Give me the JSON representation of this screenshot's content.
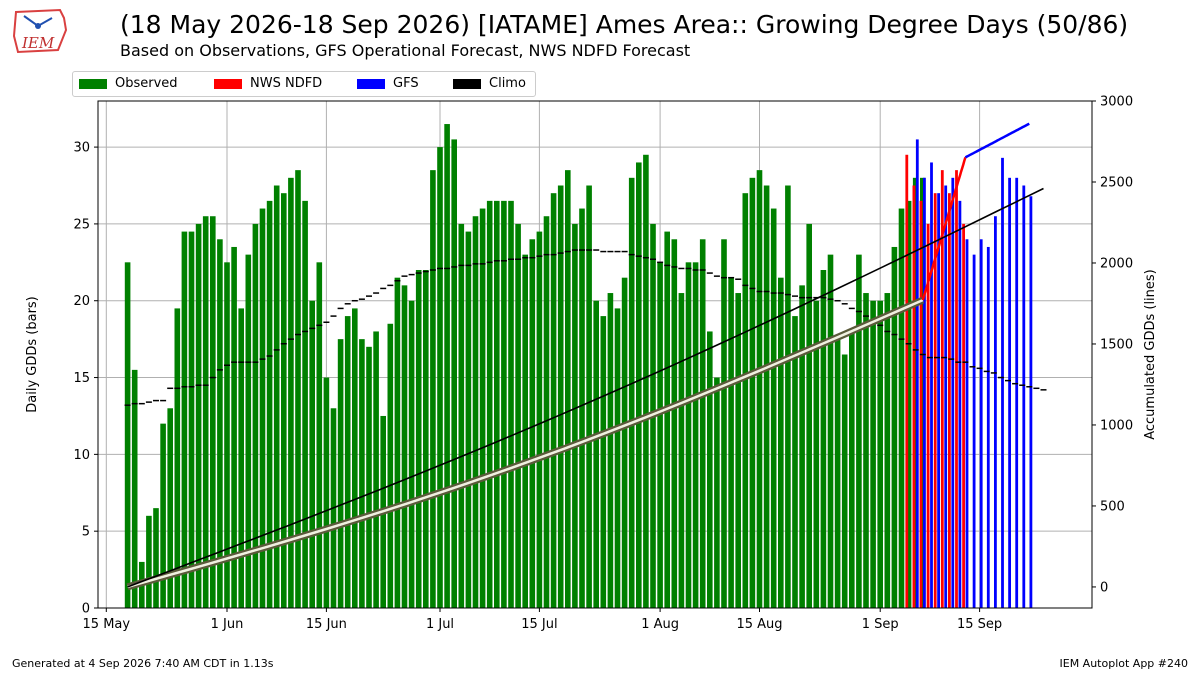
{
  "header": {
    "title": "(18 May 2026-18 Sep 2026) [IATAME] Ames Area:: Growing Degree Days (50/86)",
    "subtitle": "Based on Observations, GFS Operational Forecast, NWS NDFD Forecast"
  },
  "logo": {
    "text": "IEM"
  },
  "footer": {
    "generated": "Generated at 4 Sep 2026 7:40 AM CDT in 1.13s",
    "app": "IEM Autoplot App #240"
  },
  "colors": {
    "observed": "#008000",
    "ndfd": "#ff0000",
    "gfs": "#0000ff",
    "climo": "#000000",
    "grid": "#b0b0b0"
  },
  "legend": [
    {
      "label": "Observed",
      "color": "#008000"
    },
    {
      "label": "NWS NDFD",
      "color": "#ff0000"
    },
    {
      "label": "GFS",
      "color": "#0000ff"
    },
    {
      "label": "Climo",
      "color": "#000000"
    }
  ],
  "chart_data": {
    "type": "bar",
    "xlabel": "",
    "ylabel": "Daily GDDs (bars)",
    "y2label": "Accumulated GDDs (lines)",
    "ylim": [
      0,
      33
    ],
    "y2lim": [
      -130,
      3000
    ],
    "yticks": [
      0,
      5,
      10,
      15,
      20,
      25,
      30
    ],
    "y2ticks": [
      0,
      500,
      1000,
      1500,
      2000,
      2500,
      3000
    ],
    "xticks": [
      {
        "label": "15 May",
        "day": -3
      },
      {
        "label": "1 Jun",
        "day": 14
      },
      {
        "label": "15 Jun",
        "day": 28
      },
      {
        "label": "1 Jul",
        "day": 44
      },
      {
        "label": "15 Jul",
        "day": 58
      },
      {
        "label": "1 Aug",
        "day": 75
      },
      {
        "label": "15 Aug",
        "day": 89
      },
      {
        "label": "1 Sep",
        "day": 106
      },
      {
        "label": "15 Sep",
        "day": 120
      }
    ],
    "start_date": "18 May 2026",
    "observed": [
      22.5,
      15.5,
      3.0,
      6.0,
      6.5,
      12.0,
      13.0,
      19.5,
      24.5,
      24.5,
      25.0,
      25.5,
      25.5,
      24.0,
      22.5,
      23.5,
      19.5,
      23.0,
      25.0,
      26.0,
      26.5,
      27.5,
      27.0,
      28.0,
      28.5,
      26.5,
      20.0,
      22.5,
      15.0,
      13.0,
      17.5,
      19.0,
      19.5,
      17.5,
      17.0,
      18.0,
      12.5,
      18.5,
      21.5,
      21.0,
      20.0,
      22.0,
      22.0,
      28.5,
      30.0,
      31.5,
      30.5,
      25.0,
      24.5,
      25.5,
      26.0,
      26.5,
      26.5,
      26.5,
      26.5,
      25.0,
      23.0,
      24.0,
      24.5,
      25.5,
      27.0,
      27.5,
      28.5,
      25.0,
      26.0,
      27.5,
      20.0,
      19.0,
      20.5,
      19.5,
      21.5,
      28.0,
      29.0,
      29.5,
      25.0,
      22.5,
      24.5,
      24.0,
      20.5,
      22.5,
      22.5,
      24.0,
      18.0,
      15.0,
      24.0,
      21.5,
      20.5,
      27.0,
      28.0,
      28.5,
      27.5,
      26.0,
      21.5,
      27.5,
      19.0,
      21.0,
      25.0,
      20.0,
      22.0,
      23.0,
      17.5,
      16.5,
      18.0,
      23.0,
      20.5,
      20.0,
      20.0,
      20.5,
      23.5,
      26.0,
      26.5,
      28.0,
      28.0
    ],
    "ndfd": {
      "start_day": 110,
      "values": [
        29.5,
        27.5,
        26.5,
        25.0,
        27.0,
        28.5,
        27.0,
        28.5,
        25.0
      ]
    },
    "gfs": {
      "start_day": 111,
      "values": [
        30.5,
        28.0,
        29.0,
        27.0,
        27.5,
        28.0,
        26.5,
        24.0,
        23.0,
        24.0,
        23.5,
        25.5,
        29.3,
        28.0,
        28.0,
        27.5,
        26.8
      ]
    },
    "climo_daily": [
      13.2,
      13.3,
      13.3,
      13.4,
      13.5,
      13.5,
      14.3,
      14.3,
      14.4,
      14.4,
      14.5,
      14.5,
      15.0,
      15.5,
      15.8,
      16.0,
      16.0,
      16.0,
      16.0,
      16.2,
      16.4,
      16.8,
      17.2,
      17.5,
      17.8,
      18.0,
      18.2,
      18.4,
      18.6,
      19.0,
      19.5,
      19.8,
      20.0,
      20.1,
      20.3,
      20.5,
      20.8,
      21.0,
      21.3,
      21.6,
      21.7,
      21.8,
      21.9,
      22.0,
      22.1,
      22.1,
      22.2,
      22.3,
      22.3,
      22.4,
      22.4,
      22.5,
      22.6,
      22.6,
      22.7,
      22.7,
      22.8,
      22.8,
      22.9,
      23.0,
      23.0,
      23.1,
      23.2,
      23.3,
      23.3,
      23.3,
      23.3,
      23.2,
      23.2,
      23.2,
      23.2,
      23.0,
      22.9,
      22.8,
      22.7,
      22.5,
      22.3,
      22.2,
      22.1,
      22.1,
      22.0,
      22.0,
      21.8,
      21.6,
      21.5,
      21.5,
      21.4,
      21.0,
      20.8,
      20.6,
      20.6,
      20.5,
      20.5,
      20.4,
      20.3,
      20.2,
      20.2,
      20.2,
      20.2,
      20.1,
      20.0,
      19.8,
      19.5,
      19.3,
      19.0,
      18.7,
      18.4,
      18.0,
      17.8,
      17.5,
      17.2,
      16.8,
      16.5,
      16.3,
      16.3,
      16.3,
      16.2,
      16.0,
      16.0,
      15.7,
      15.6,
      15.4,
      15.3,
      15.0,
      14.8,
      14.6,
      14.5,
      14.4,
      14.3,
      14.2
    ],
    "accum_observed": [
      0,
      1771
    ],
    "accum_forecast_ndfd": [
      1771,
      2652
    ],
    "accum_forecast_gfs": [
      2652,
      2860
    ],
    "accum_climo": [
      0,
      2460
    ]
  }
}
